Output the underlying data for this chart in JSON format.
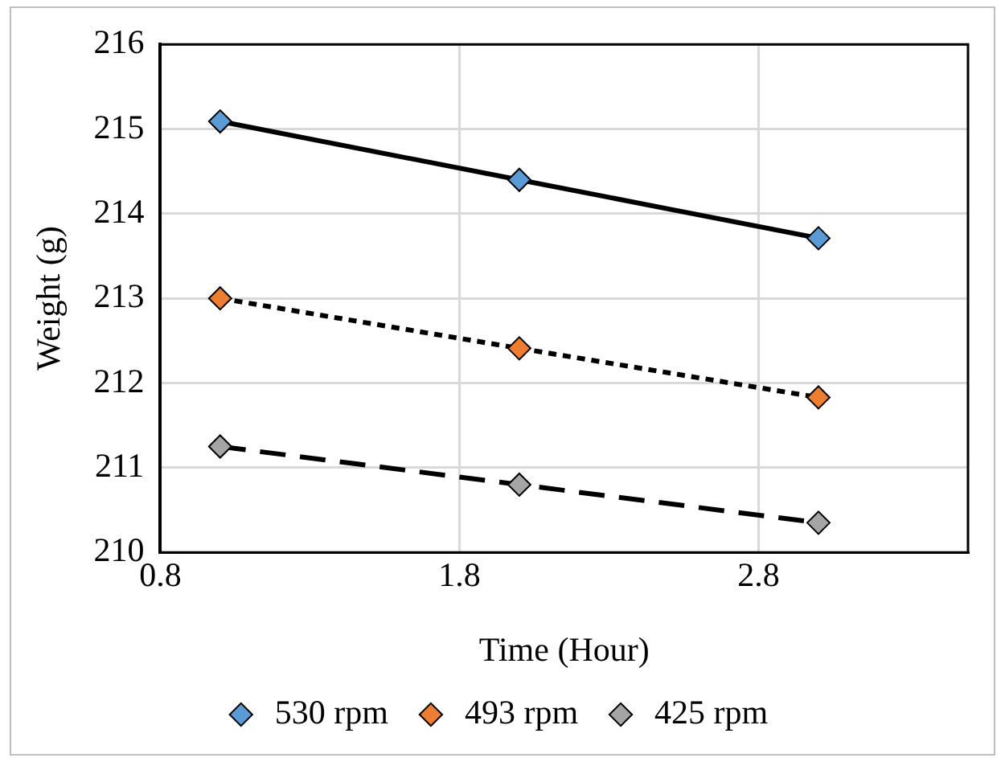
{
  "chart_data": {
    "type": "line",
    "xlabel": "Time (Hour)",
    "ylabel": "Weight (g)",
    "x": [
      1,
      2,
      3
    ],
    "series": [
      {
        "name": "530 rpm",
        "color": "#5b9bd5",
        "values": [
          215.09,
          214.4,
          213.71
        ],
        "line_style": "solid"
      },
      {
        "name": "493 rpm",
        "color": "#ed7d31",
        "values": [
          213.0,
          212.41,
          211.83
        ],
        "line_style": "dotted"
      },
      {
        "name": "425 rpm",
        "color": "#a5a5a5",
        "values": [
          211.25,
          210.8,
          210.35
        ],
        "line_style": "dashed"
      }
    ],
    "xlim": [
      0.8,
      3.5
    ],
    "xticks": [
      0.8,
      1.8,
      2.8
    ],
    "ylim": [
      210,
      216
    ],
    "yticks": [
      210,
      211,
      212,
      213,
      214,
      215,
      216
    ],
    "grid": true,
    "legend": "bottom",
    "marker": "diamond"
  }
}
